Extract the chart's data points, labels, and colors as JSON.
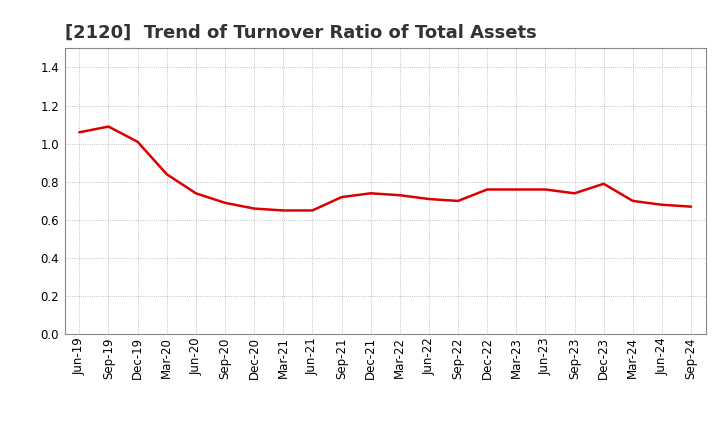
{
  "title": "[2120]  Trend of Turnover Ratio of Total Assets",
  "x_labels": [
    "Jun-19",
    "Sep-19",
    "Dec-19",
    "Mar-20",
    "Jun-20",
    "Sep-20",
    "Dec-20",
    "Mar-21",
    "Jun-21",
    "Sep-21",
    "Dec-21",
    "Mar-22",
    "Jun-22",
    "Sep-22",
    "Dec-22",
    "Mar-23",
    "Jun-23",
    "Sep-23",
    "Dec-23",
    "Mar-24",
    "Jun-24",
    "Sep-24"
  ],
  "y_values": [
    1.06,
    1.09,
    1.01,
    0.84,
    0.74,
    0.69,
    0.66,
    0.65,
    0.65,
    0.72,
    0.74,
    0.73,
    0.71,
    0.7,
    0.76,
    0.76,
    0.76,
    0.74,
    0.79,
    0.7,
    0.68,
    0.67
  ],
  "line_color": "#dd0000",
  "ylim": [
    0.0,
    1.5
  ],
  "yticks": [
    0.0,
    0.2,
    0.4,
    0.6,
    0.8,
    1.0,
    1.2,
    1.4
  ],
  "background_color": "#ffffff",
  "grid_color": "#999999",
  "title_fontsize": 13,
  "tick_fontsize": 8.5
}
